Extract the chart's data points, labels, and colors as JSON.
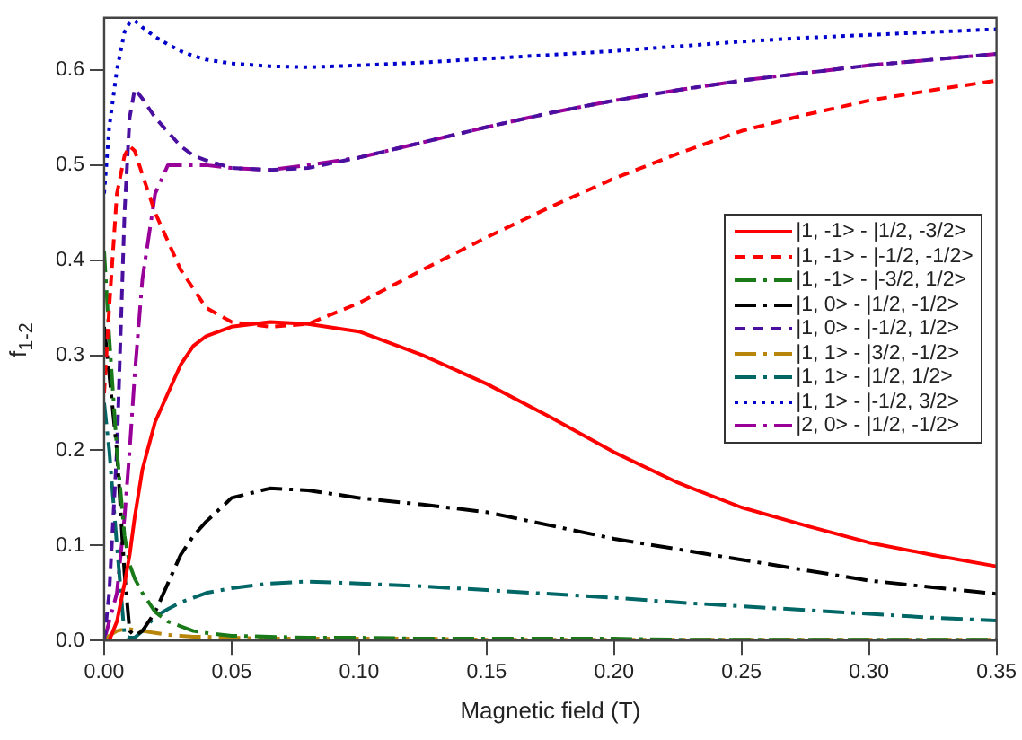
{
  "chart_data": {
    "type": "line",
    "xlabel": "Magnetic field (T)",
    "ylabel": "f$_{1-2}$",
    "x": [
      0,
      0.002,
      0.005,
      0.008,
      0.01,
      0.012,
      0.015,
      0.02,
      0.025,
      0.03,
      0.035,
      0.04,
      0.05,
      0.065,
      0.08,
      0.1,
      0.125,
      0.15,
      0.175,
      0.2,
      0.225,
      0.25,
      0.275,
      0.3,
      0.325,
      0.35
    ],
    "xlim": [
      0,
      0.35
    ],
    "ylim": [
      0,
      0.655
    ],
    "xticks": [
      {
        "value": 0,
        "label": "0.00"
      },
      {
        "value": 0.05,
        "label": "0.05"
      },
      {
        "value": 0.1,
        "label": "0.10"
      },
      {
        "value": 0.15,
        "label": "0.15"
      },
      {
        "value": 0.2,
        "label": "0.20"
      },
      {
        "value": 0.25,
        "label": "0.25"
      },
      {
        "value": 0.3,
        "label": "0.30"
      },
      {
        "value": 0.35,
        "label": "0.35"
      }
    ],
    "yticks": [
      {
        "value": 0,
        "label": "0.0"
      },
      {
        "value": 0.1,
        "label": "0.1"
      },
      {
        "value": 0.2,
        "label": "0.2"
      },
      {
        "value": 0.3,
        "label": "0.3"
      },
      {
        "value": 0.4,
        "label": "0.4"
      },
      {
        "value": 0.5,
        "label": "0.5"
      },
      {
        "value": 0.6,
        "label": "0.6"
      }
    ],
    "grid": false,
    "legend": "right",
    "marker": "none",
    "series": [
      {
        "name": "|1, -1> - |1/2, -3/2>",
        "color": "#ff0000",
        "line_style": "solid",
        "values": [
          0,
          0,
          0.02,
          0.06,
          0.09,
          0.13,
          0.18,
          0.23,
          0.26,
          0.29,
          0.31,
          0.32,
          0.33,
          0.335,
          0.333,
          0.325,
          0.3,
          0.27,
          0.235,
          0.198,
          0.166,
          0.14,
          0.121,
          0.103,
          0.09,
          0.078
        ]
      },
      {
        "name": "|1, -1> - |-1/2, -1/2>",
        "color": "#ff0000",
        "line_style": "dashed",
        "values": [
          0.26,
          0.35,
          0.47,
          0.51,
          0.52,
          0.515,
          0.49,
          0.45,
          0.42,
          0.39,
          0.37,
          0.35,
          0.335,
          0.33,
          0.333,
          0.355,
          0.39,
          0.424,
          0.456,
          0.486,
          0.512,
          0.536,
          0.553,
          0.568,
          0.579,
          0.589
        ]
      },
      {
        "name": "|1, -1> - |-3/2, 1/2>",
        "color": "#1a7a1a",
        "line_style": "dashdot",
        "values": [
          0.41,
          0.32,
          0.2,
          0.11,
          0.08,
          0.065,
          0.05,
          0.03,
          0.02,
          0.015,
          0.01,
          0.008,
          0.005,
          0.004,
          0.003,
          0.003,
          0.002,
          0.002,
          0.002,
          0.002,
          0.001,
          0.001,
          0.001,
          0.001,
          0.001,
          0.001
        ]
      },
      {
        "name": "|1, 0> - |1/2, -1/2>",
        "color": "#000000",
        "line_style": "dashdot",
        "values": [
          0.33,
          0.28,
          0.2,
          0.07,
          0.01,
          0.005,
          0.01,
          0.03,
          0.06,
          0.09,
          0.11,
          0.125,
          0.15,
          0.16,
          0.158,
          0.15,
          0.143,
          0.135,
          0.121,
          0.107,
          0.096,
          0.085,
          0.074,
          0.063,
          0.056,
          0.049
        ]
      },
      {
        "name": "|1, 0> - |-1/2, 1/2>",
        "color": "#4b0fa0",
        "line_style": "dashed",
        "values": [
          0,
          0.05,
          0.2,
          0.45,
          0.55,
          0.58,
          0.57,
          0.55,
          0.535,
          0.52,
          0.51,
          0.505,
          0.497,
          0.495,
          0.497,
          0.508,
          0.524,
          0.54,
          0.555,
          0.568,
          0.579,
          0.589,
          0.597,
          0.605,
          0.611,
          0.617
        ]
      },
      {
        "name": "|1, 1> - |3/2, -1/2>",
        "color": "#b8860b",
        "line_style": "dashdot",
        "values": [
          0,
          0.005,
          0.01,
          0.012,
          0.012,
          0.011,
          0.01,
          0.008,
          0.006,
          0.005,
          0.004,
          0.004,
          0.003,
          0.002,
          0.002,
          0.002,
          0.002,
          0.001,
          0.001,
          0.001,
          0.001,
          0.001,
          0.001,
          0.001,
          0.001,
          0.001
        ]
      },
      {
        "name": "|1, 1> - |1/2, 1/2>",
        "color": "#006666",
        "line_style": "dashdot",
        "values": [
          0.25,
          0.2,
          0.1,
          0.005,
          0.003,
          0.003,
          0.01,
          0.025,
          0.033,
          0.04,
          0.045,
          0.05,
          0.055,
          0.06,
          0.062,
          0.06,
          0.057,
          0.053,
          0.049,
          0.045,
          0.04,
          0.036,
          0.032,
          0.028,
          0.024,
          0.021
        ]
      },
      {
        "name": "|1, 1> - |-1/2, 3/2>",
        "color": "#0000cc",
        "line_style": "dotted",
        "values": [
          0.47,
          0.54,
          0.6,
          0.64,
          0.65,
          0.652,
          0.645,
          0.635,
          0.627,
          0.62,
          0.615,
          0.611,
          0.607,
          0.604,
          0.603,
          0.605,
          0.608,
          0.612,
          0.616,
          0.62,
          0.625,
          0.63,
          0.634,
          0.637,
          0.64,
          0.643
        ]
      },
      {
        "name": "|2, 0> - |1/2, -1/2>",
        "color": "#990099",
        "line_style": "dashdot",
        "values": [
          0,
          0.02,
          0.05,
          0.13,
          0.2,
          0.28,
          0.38,
          0.47,
          0.5,
          0.5,
          0.5,
          0.5,
          0.497,
          0.495,
          0.5,
          0.508,
          0.524,
          0.54,
          0.555,
          0.568,
          0.579,
          0.589,
          0.597,
          0.605,
          0.611,
          0.617
        ]
      }
    ]
  }
}
